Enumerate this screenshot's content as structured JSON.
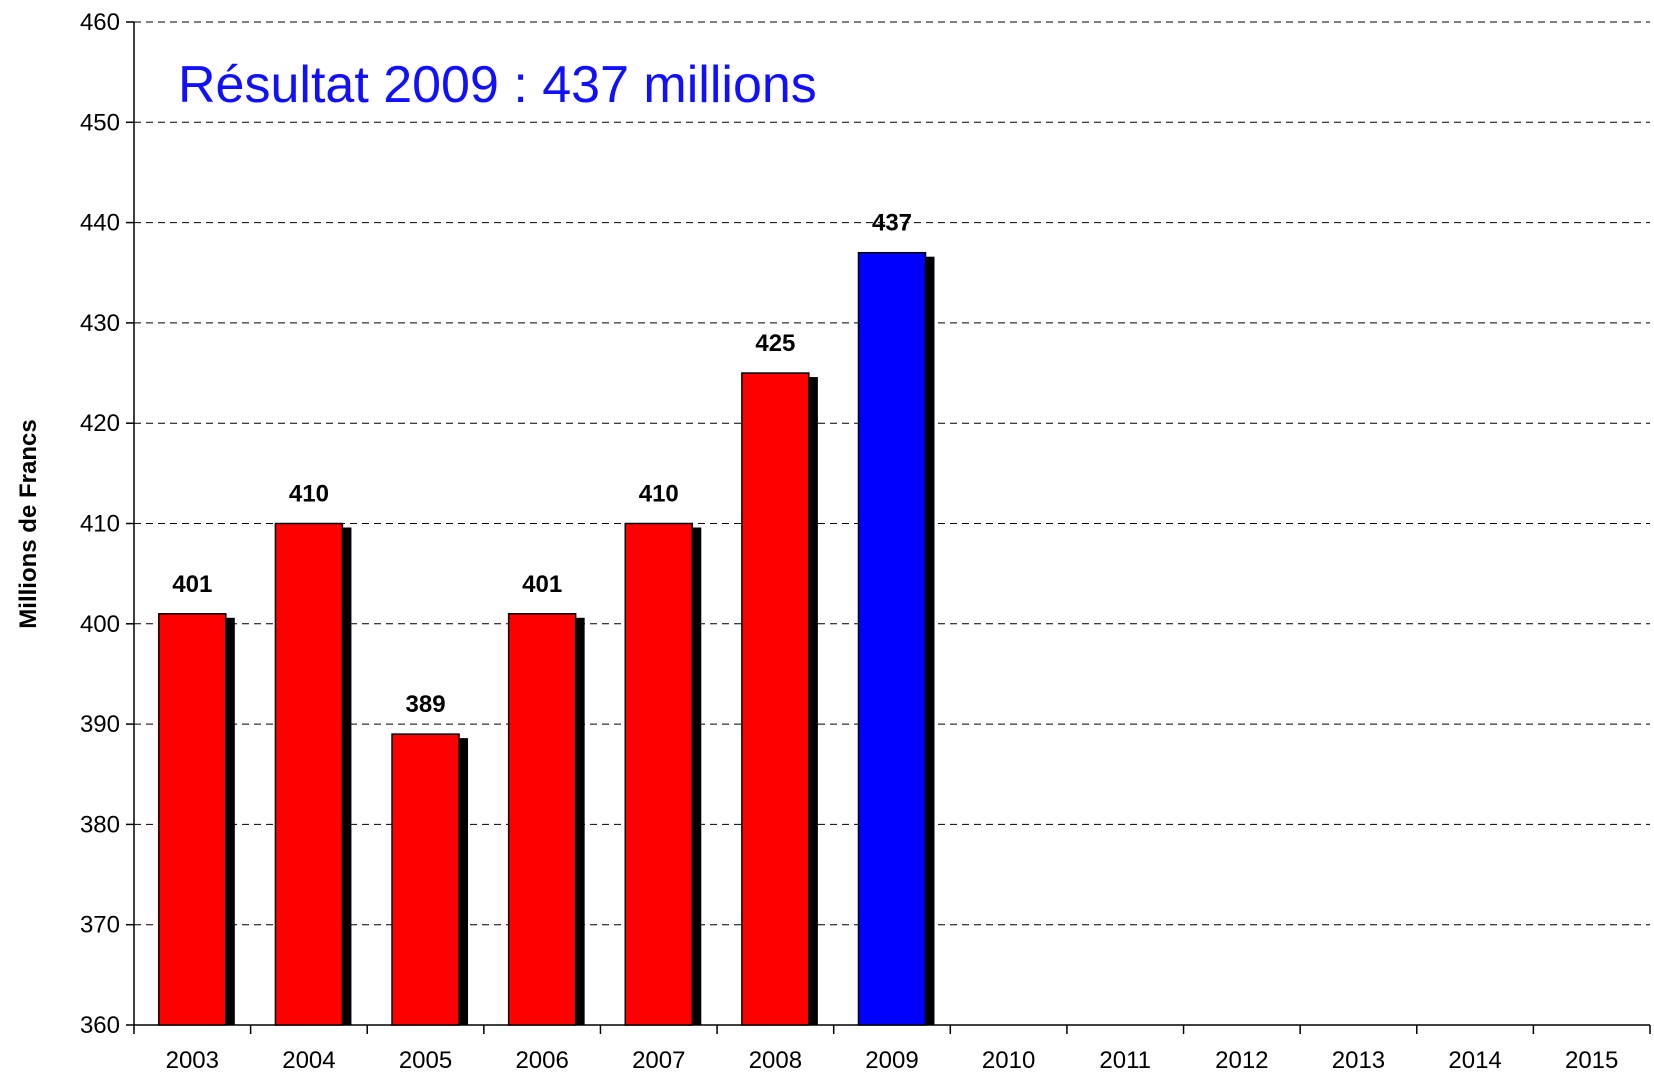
{
  "chart_data": {
    "type": "bar",
    "title": "Résultat 2009 : 437 millions",
    "xlabel": "",
    "ylabel": "Millions de Francs",
    "categories": [
      "2003",
      "2004",
      "2005",
      "2006",
      "2007",
      "2008",
      "2009",
      "2010",
      "2011",
      "2012",
      "2013",
      "2014",
      "2015"
    ],
    "series": [
      {
        "values": [
          401,
          410,
          389,
          401,
          410,
          425,
          437,
          null,
          null,
          null,
          null,
          null,
          null
        ]
      }
    ],
    "ylim": [
      360,
      460
    ],
    "yticks": [
      360,
      370,
      380,
      390,
      400,
      410,
      420,
      430,
      440,
      450,
      460
    ],
    "grid": "horizontal-dashed",
    "legend": "none",
    "colors": {
      "default_bar": "#ff0000",
      "highlight_bar": "#0000ff",
      "highlight_category": "2009",
      "shadow": "#000000",
      "title": "#1010ff"
    }
  }
}
